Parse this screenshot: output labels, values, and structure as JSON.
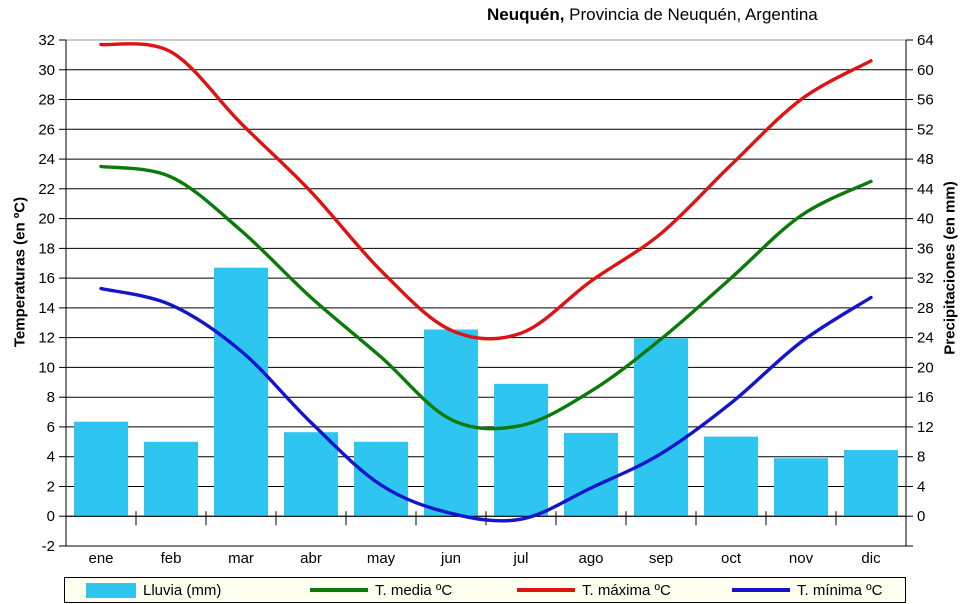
{
  "title": {
    "bold": "Neuquén,",
    "rest": " Provincia de Neuquén, Argentina"
  },
  "y_left": {
    "label": "Temperaturas (en ºC)",
    "ticks": [
      32,
      30,
      28,
      26,
      24,
      22,
      20,
      18,
      16,
      14,
      12,
      10,
      8,
      6,
      4,
      2,
      0,
      -2
    ]
  },
  "y_right": {
    "label": "Precipitaciones (en mm)",
    "ticks": [
      64,
      60,
      56,
      52,
      48,
      44,
      40,
      36,
      32,
      28,
      24,
      20,
      16,
      12,
      8,
      4,
      0
    ]
  },
  "colors": {
    "rain": "#2EC5F0",
    "t_media": "#0A7A0A",
    "t_maxima": "#DC1414",
    "t_minima": "#1414CC",
    "grid": "#000000",
    "grid_top": "#9A9A9A",
    "axis": "#000000",
    "legend_bg": "#FFFFEF"
  },
  "legend": {
    "items": [
      {
        "label": "Lluvia (mm)",
        "type": "bar",
        "color": "#2EC5F0"
      },
      {
        "label": "T. media ºC",
        "type": "line",
        "color": "#0A7A0A"
      },
      {
        "label": "T. máxima ºC",
        "type": "line",
        "color": "#DC1414"
      },
      {
        "label": "T. mínima ºC",
        "type": "line",
        "color": "#1414CC"
      }
    ]
  },
  "chart_data": {
    "type": "bar+line combo climograph",
    "title": "Neuquén, Provincia de Neuquén, Argentina",
    "categories": [
      "ene",
      "feb",
      "mar",
      "abr",
      "may",
      "jun",
      "jul",
      "ago",
      "sep",
      "oct",
      "nov",
      "dic"
    ],
    "series": [
      {
        "name": "Lluvia (mm)",
        "type": "bar",
        "axis": "right",
        "unit": "mm",
        "color": "#2EC5F0",
        "values": [
          12.7,
          10.0,
          33.4,
          11.3,
          10.0,
          25.1,
          17.8,
          11.2,
          23.9,
          10.7,
          7.8,
          8.9
        ]
      },
      {
        "name": "T. media ºC",
        "type": "line",
        "axis": "left",
        "unit": "ºC",
        "color": "#0A7A0A",
        "values": [
          23.5,
          22.8,
          19.2,
          14.7,
          10.7,
          6.5,
          6.1,
          8.4,
          11.9,
          16.0,
          20.2,
          22.5
        ]
      },
      {
        "name": "T. máxima ºC",
        "type": "line",
        "axis": "left",
        "unit": "ºC",
        "color": "#DC1414",
        "values": [
          31.7,
          31.2,
          26.4,
          21.8,
          16.5,
          12.5,
          12.3,
          15.8,
          19.0,
          23.6,
          28.0,
          30.6
        ]
      },
      {
        "name": "T. mínima ºC",
        "type": "line",
        "axis": "left",
        "unit": "ºC",
        "color": "#1414CC",
        "values": [
          15.3,
          14.2,
          11.1,
          6.3,
          2.1,
          0.2,
          -0.2,
          1.9,
          4.2,
          7.6,
          11.7,
          14.7
        ]
      }
    ],
    "axes": {
      "left": {
        "label": "Temperaturas (en ºC)",
        "min": -2,
        "max": 32,
        "step": 2
      },
      "right": {
        "label": "Precipitaciones (en mm)",
        "min": -4,
        "max": 64,
        "step": 4
      }
    },
    "grid": "horizontal only",
    "legend_position": "bottom"
  }
}
